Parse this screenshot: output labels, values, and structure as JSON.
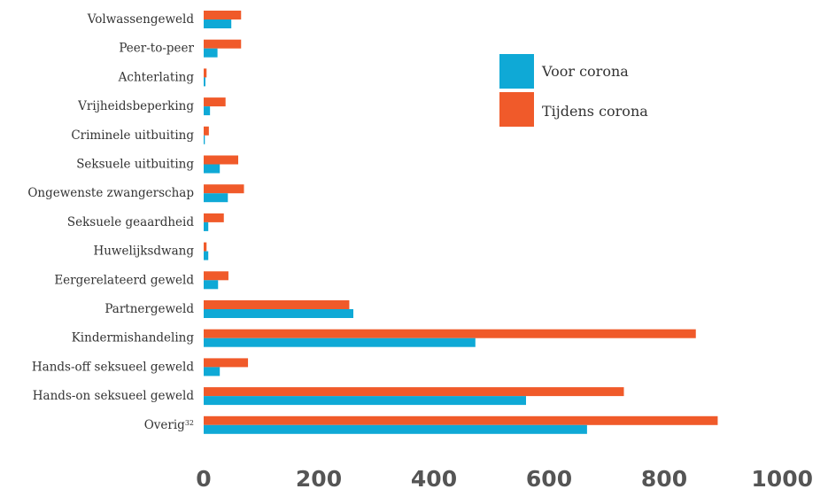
{
  "chart_data": {
    "type": "bar",
    "orientation": "horizontal",
    "categories": [
      "Volwassengeweld",
      "Peer-to-peer",
      "Achterlating",
      "Vrijheidsbeperking",
      "Criminele uitbuiting",
      "Seksuele uitbuiting",
      "Ongewenste zwangerschap",
      "Seksuele geaardheid",
      "Huwelijksdwang",
      "Eergerelateerd geweld",
      "Partnergeweld",
      "Kindermishandeling",
      "Hands-off seksueel geweld",
      "Hands-on seksueel geweld",
      "Overig"
    ],
    "category_superscripts": [
      "",
      "",
      "",
      "",
      "",
      "",
      "",
      "",
      "",
      "",
      "",
      "",
      "",
      "",
      "32"
    ],
    "series": [
      {
        "name": "Tijdens corona",
        "color": "#f05a2a",
        "values": [
          65,
          65,
          5,
          38,
          9,
          60,
          70,
          35,
          5,
          43,
          253,
          855,
          77,
          730,
          893
        ]
      },
      {
        "name": "Voor corona",
        "color": "#0fa9d6",
        "values": [
          48,
          24,
          3,
          11,
          2,
          28,
          42,
          8,
          8,
          25,
          260,
          472,
          28,
          560,
          666
        ]
      }
    ],
    "xlim": [
      0,
      1000
    ],
    "xticks": [
      "0",
      "200",
      "400",
      "600",
      "800",
      "1000"
    ],
    "legend": {
      "position": "top-right",
      "entries": [
        {
          "label": "Voor corona",
          "color": "#0fa9d6"
        },
        {
          "label": "Tijdens corona",
          "color": "#f05a2a"
        }
      ]
    },
    "grid": false
  }
}
